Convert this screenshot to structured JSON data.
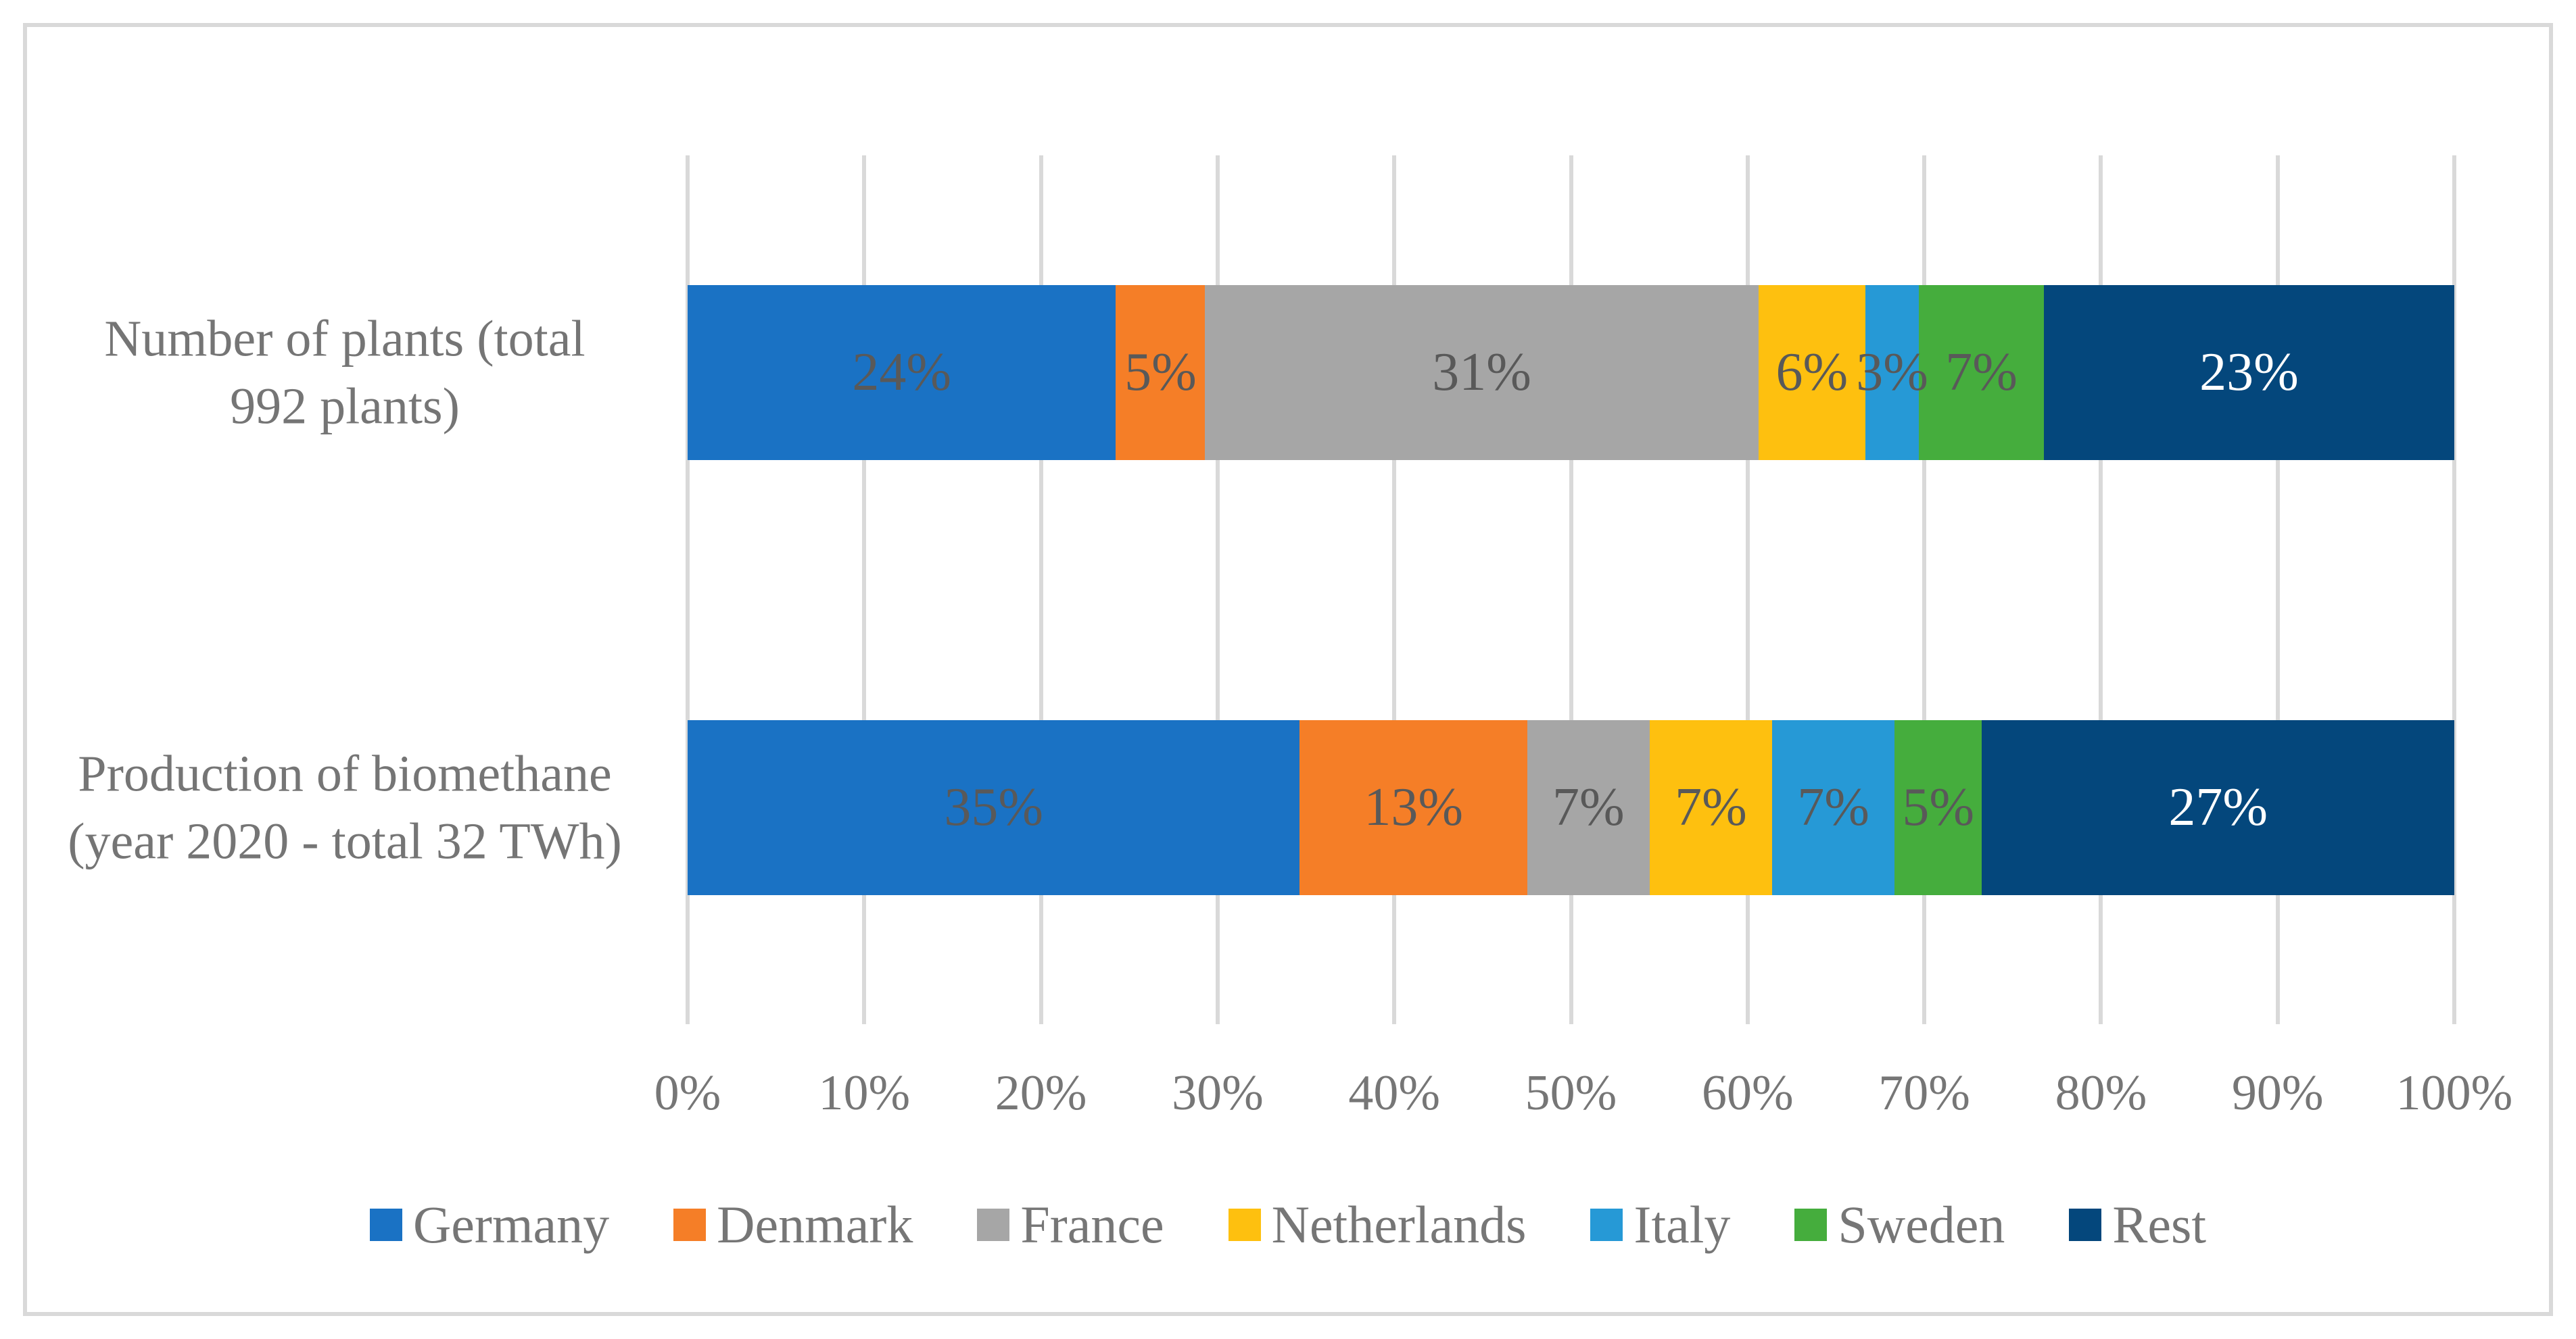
{
  "figure": {
    "background_color": "#FFFFFF",
    "border_color": "#D9D9D9",
    "gridline_color": "#D9D9D9",
    "axis_text_color": "#767676",
    "data_label_color": "#595959"
  },
  "chart_data": {
    "type": "bar",
    "orientation": "horizontal",
    "stacked": true,
    "title": "",
    "xlabel": "",
    "ylabel": "",
    "xlim": [
      0,
      100
    ],
    "grid": true,
    "legend_position": "bottom",
    "x_ticks": [
      "0%",
      "10%",
      "20%",
      "30%",
      "40%",
      "50%",
      "60%",
      "70%",
      "80%",
      "90%",
      "100%"
    ],
    "categories": [
      "Number of plants (total 992 plants)",
      "Production of biomethane (year 2020 - total 32 TWh)"
    ],
    "category_lines": [
      [
        "Number of plants (total",
        "992 plants)"
      ],
      [
        "Production of biomethane",
        "(year 2020 - total 32 TWh)"
      ]
    ],
    "series": [
      {
        "name": "Germany",
        "color": "#1A72C4",
        "values": [
          24,
          35
        ]
      },
      {
        "name": "Denmark",
        "color": "#F57E27",
        "values": [
          5,
          13
        ]
      },
      {
        "name": "France",
        "color": "#A6A6A6",
        "values": [
          31,
          7
        ]
      },
      {
        "name": "Netherlands",
        "color": "#FEC00F",
        "values": [
          6,
          7
        ]
      },
      {
        "name": "Italy",
        "color": "#2699D6",
        "values": [
          3,
          7
        ]
      },
      {
        "name": "Sweden",
        "color": "#45AD3D",
        "values": [
          7,
          5
        ]
      },
      {
        "name": "Rest",
        "color": "#04477C",
        "values": [
          23,
          27
        ],
        "label_color": "#FFFFFF"
      }
    ],
    "data_labels": [
      [
        "24%",
        "5%",
        "31%",
        "6%",
        "3%",
        "7%",
        "23%"
      ],
      [
        "35%",
        "13%",
        "7%",
        "7%",
        "7%",
        "5%",
        "27%"
      ]
    ]
  }
}
